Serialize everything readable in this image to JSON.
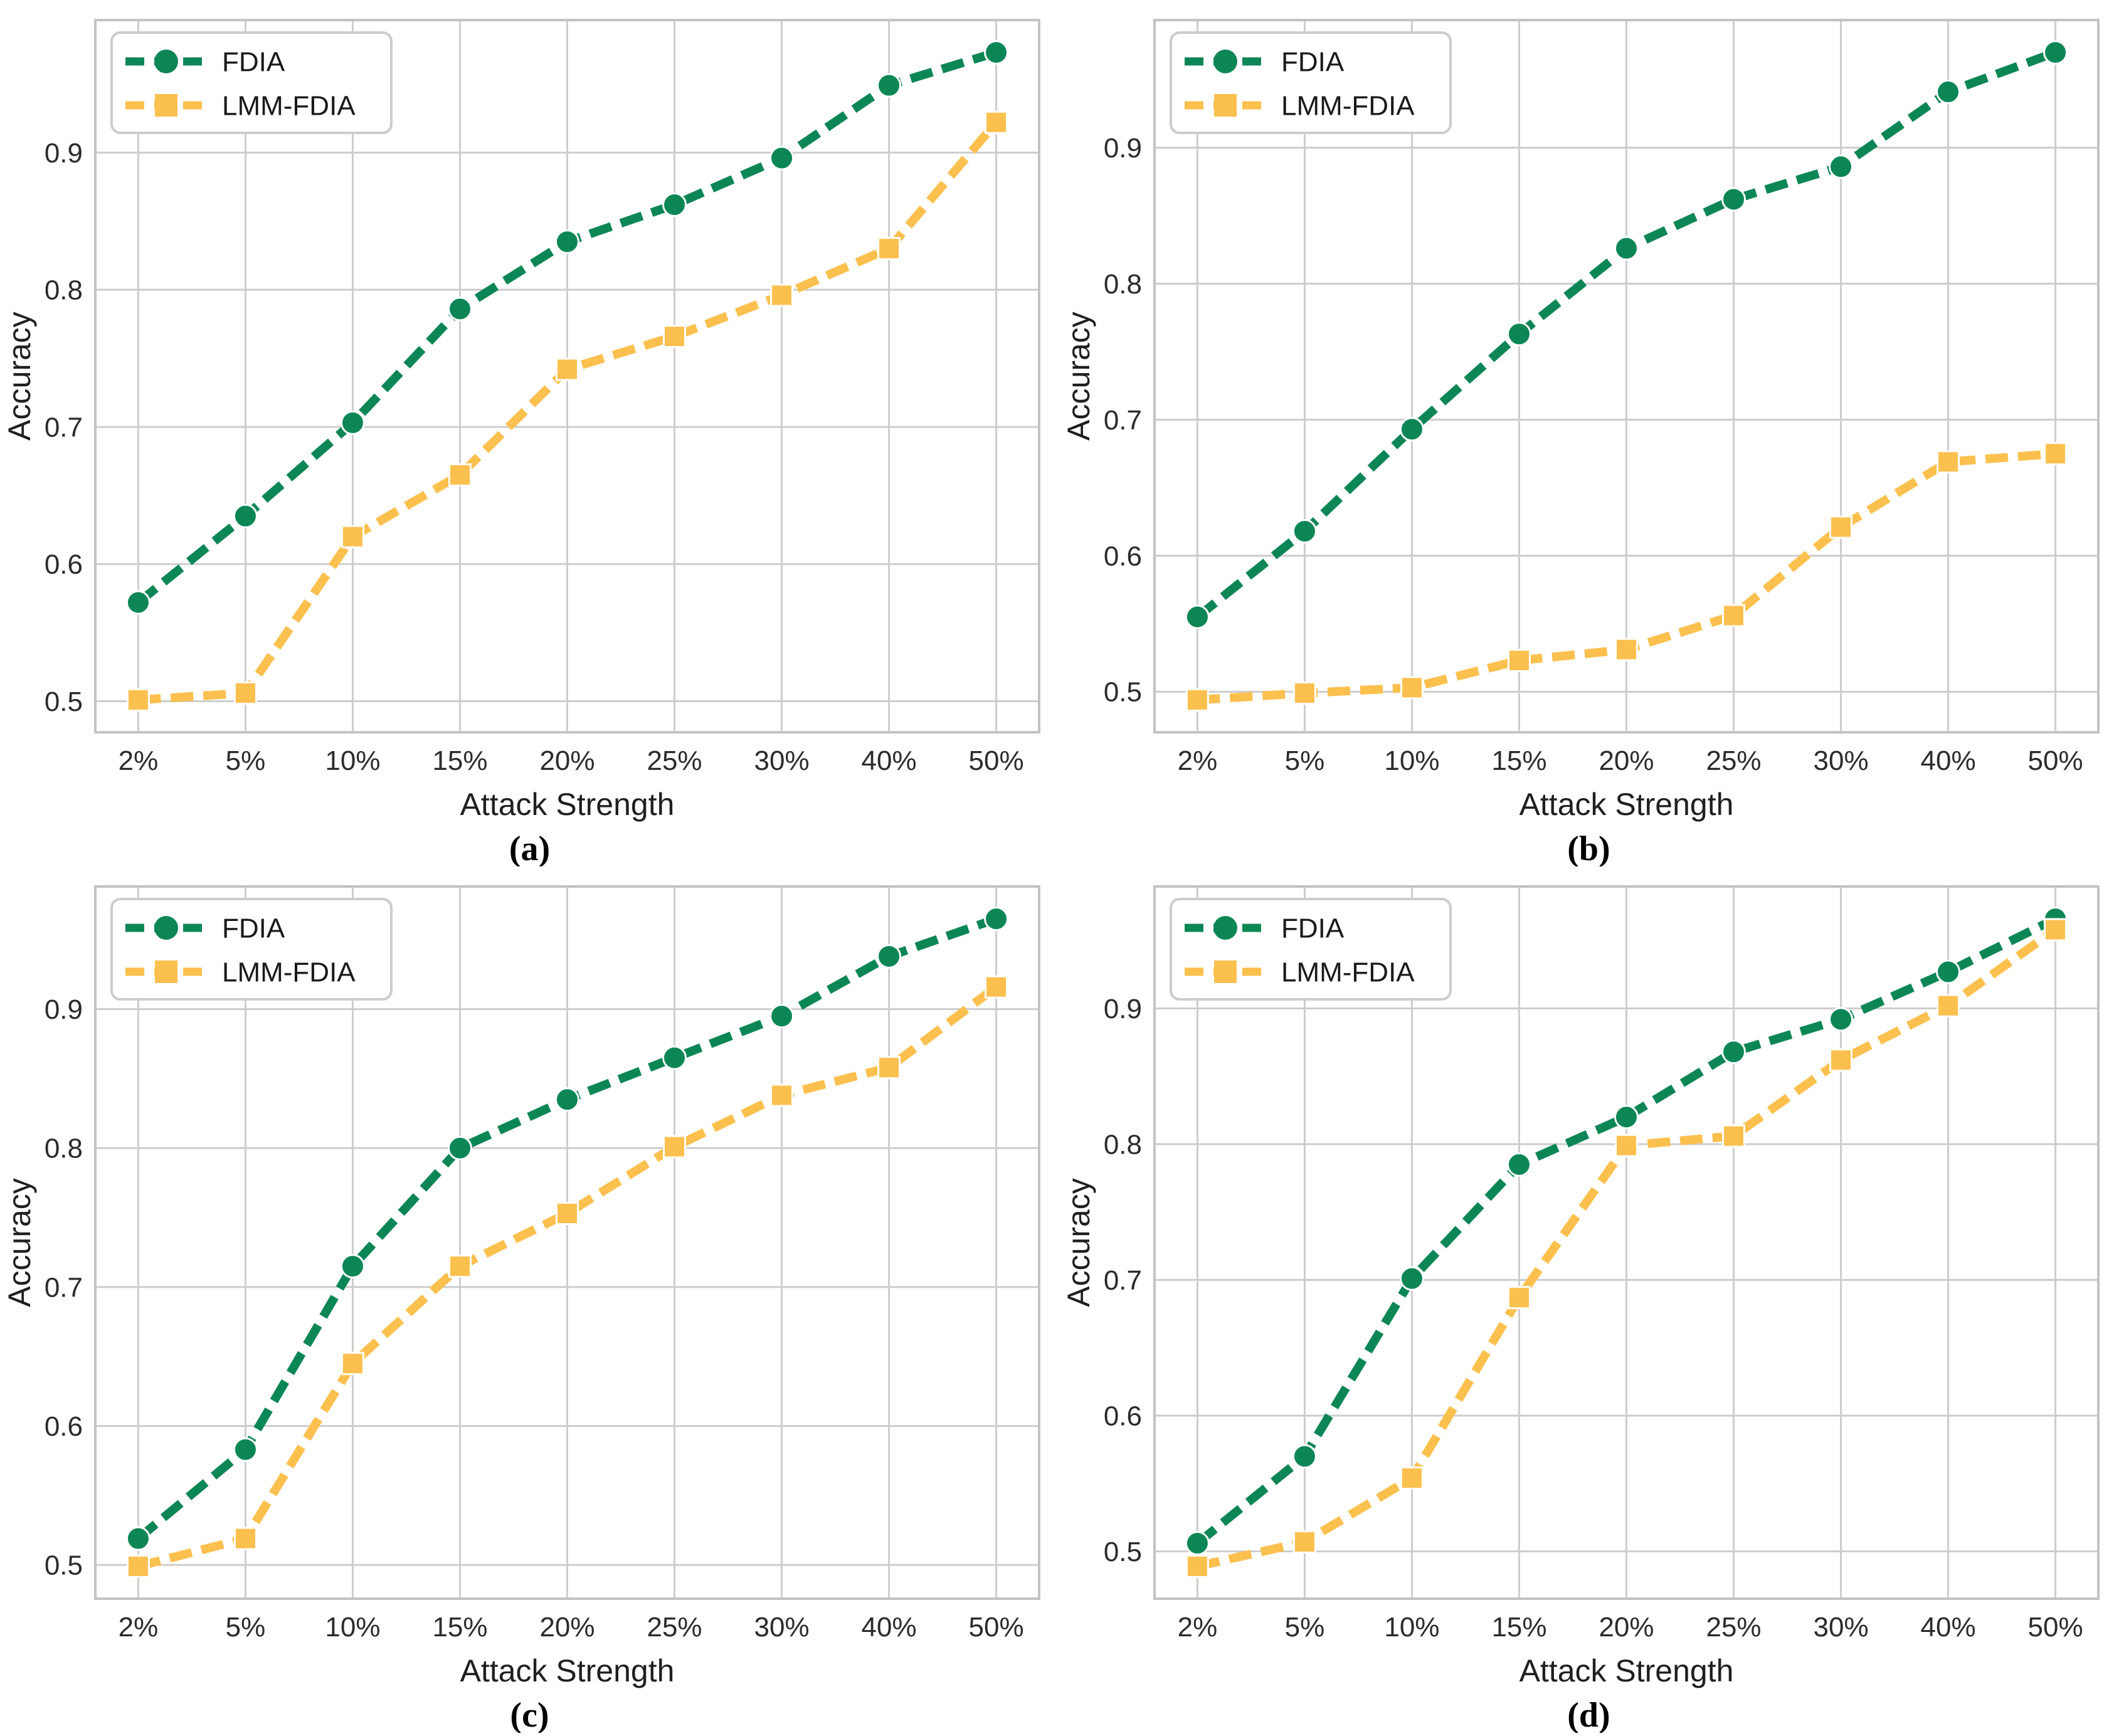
{
  "figure": {
    "x_axis_label": "Attack Strength",
    "y_axis_label": "Accuracy",
    "x_tick_labels": [
      "2%",
      "5%",
      "10%",
      "15%",
      "20%",
      "25%",
      "30%",
      "40%",
      "50%"
    ],
    "y_tick_labels": [
      "0.5",
      "0.6",
      "0.7",
      "0.8",
      "0.9"
    ],
    "legend_entries": [
      "FDIA",
      "LMM-FDIA"
    ],
    "colors": {
      "fdia": "#0d8656",
      "lmm_fdia": "#fcc04e",
      "grid": "#cdcdcd",
      "spine": "#c3c3c3",
      "tick_text": "#2b2b2b",
      "background": "#ffffff"
    }
  },
  "chart_data": [
    {
      "type": "line",
      "caption": "(a)",
      "xlabel": "Attack Strength",
      "ylabel": "Accuracy",
      "categories": [
        "2%",
        "5%",
        "10%",
        "15%",
        "20%",
        "25%",
        "30%",
        "40%",
        "50%"
      ],
      "y_ticks": [
        0.5,
        0.6,
        0.7,
        0.8,
        0.9
      ],
      "grid": true,
      "legend_position": "upper left",
      "series": [
        {
          "name": "FDIA",
          "color": "#0d8656",
          "marker": "circle",
          "linestyle": "dashed",
          "values": [
            0.572,
            0.635,
            0.703,
            0.786,
            0.835,
            0.862,
            0.896,
            0.949,
            0.973
          ]
        },
        {
          "name": "LMM-FDIA",
          "color": "#fcc04e",
          "marker": "square",
          "linestyle": "dashed",
          "values": [
            0.501,
            0.506,
            0.62,
            0.665,
            0.742,
            0.766,
            0.796,
            0.83,
            0.922
          ]
        }
      ]
    },
    {
      "type": "line",
      "caption": "(b)",
      "xlabel": "Attack Strength",
      "ylabel": "Accuracy",
      "categories": [
        "2%",
        "5%",
        "10%",
        "15%",
        "20%",
        "25%",
        "30%",
        "40%",
        "50%"
      ],
      "y_ticks": [
        0.5,
        0.6,
        0.7,
        0.8,
        0.9
      ],
      "grid": true,
      "legend_position": "upper left",
      "series": [
        {
          "name": "FDIA",
          "color": "#0d8656",
          "marker": "circle",
          "linestyle": "dashed",
          "values": [
            0.555,
            0.618,
            0.693,
            0.763,
            0.826,
            0.862,
            0.886,
            0.941,
            0.97
          ]
        },
        {
          "name": "LMM-FDIA",
          "color": "#fcc04e",
          "marker": "square",
          "linestyle": "dashed",
          "values": [
            0.494,
            0.499,
            0.503,
            0.523,
            0.531,
            0.556,
            0.621,
            0.669,
            0.675
          ]
        }
      ]
    },
    {
      "type": "line",
      "caption": "(c)",
      "xlabel": "Attack Strength",
      "ylabel": "Accuracy",
      "categories": [
        "2%",
        "5%",
        "10%",
        "15%",
        "20%",
        "25%",
        "30%",
        "40%",
        "50%"
      ],
      "y_ticks": [
        0.5,
        0.6,
        0.7,
        0.8,
        0.9
      ],
      "grid": true,
      "legend_position": "upper left",
      "series": [
        {
          "name": "FDIA",
          "color": "#0d8656",
          "marker": "circle",
          "linestyle": "dashed",
          "values": [
            0.519,
            0.583,
            0.715,
            0.8,
            0.835,
            0.865,
            0.895,
            0.938,
            0.965
          ]
        },
        {
          "name": "LMM-FDIA",
          "color": "#fcc04e",
          "marker": "square",
          "linestyle": "dashed",
          "values": [
            0.499,
            0.519,
            0.645,
            0.715,
            0.753,
            0.801,
            0.838,
            0.858,
            0.916
          ]
        }
      ]
    },
    {
      "type": "line",
      "caption": "(d)",
      "xlabel": "Attack Strength",
      "ylabel": "Accuracy",
      "categories": [
        "2%",
        "5%",
        "10%",
        "15%",
        "20%",
        "25%",
        "30%",
        "40%",
        "50%"
      ],
      "y_ticks": [
        0.5,
        0.6,
        0.7,
        0.8,
        0.9
      ],
      "grid": true,
      "legend_position": "upper left",
      "series": [
        {
          "name": "FDIA",
          "color": "#0d8656",
          "marker": "circle",
          "linestyle": "dashed",
          "values": [
            0.506,
            0.57,
            0.701,
            0.785,
            0.82,
            0.868,
            0.892,
            0.927,
            0.966
          ]
        },
        {
          "name": "LMM-FDIA",
          "color": "#fcc04e",
          "marker": "square",
          "linestyle": "dashed",
          "values": [
            0.489,
            0.507,
            0.554,
            0.687,
            0.799,
            0.806,
            0.862,
            0.902,
            0.958
          ]
        }
      ]
    }
  ]
}
